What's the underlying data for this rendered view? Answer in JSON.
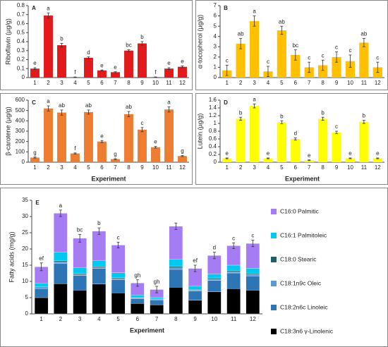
{
  "chart_data": [
    {
      "type": "bar",
      "panel": "A",
      "ylabel": "Riboflavin (µg/g)",
      "color": "#e31a1c",
      "categories": [
        "1",
        "2",
        "3",
        "4",
        "5",
        "6",
        "7",
        "8",
        "9",
        "10",
        "11",
        "12"
      ],
      "values": [
        0.1,
        0.69,
        0.36,
        0.005,
        0.22,
        0.08,
        0.06,
        0.3,
        0.38,
        0.005,
        0.1,
        0.12
      ],
      "errors": [
        0.01,
        0.03,
        0.02,
        0.002,
        0.01,
        0.005,
        0.005,
        0.01,
        0.02,
        0.002,
        0.01,
        0.01
      ],
      "annotations": [
        "e",
        "a",
        "b",
        "f",
        "d",
        "e",
        "e",
        "bc",
        "b",
        "f",
        "e",
        "e"
      ],
      "ylim": [
        0,
        0.8
      ],
      "yticks": [
        0,
        0.1,
        0.2,
        0.3,
        0.4,
        0.5,
        0.6,
        0.7,
        0.8
      ]
    },
    {
      "type": "bar",
      "panel": "B",
      "ylabel": "α-tocopherol (µg/g)",
      "color": "#ffc000",
      "categories": [
        "1",
        "2",
        "3",
        "4",
        "5",
        "6",
        "7",
        "8",
        "9",
        "10",
        "11",
        "12"
      ],
      "values": [
        0.7,
        3.3,
        5.5,
        0.6,
        4.6,
        2.2,
        1.0,
        1.2,
        2.0,
        1.6,
        3.4,
        1.0
      ],
      "errors": [
        0.5,
        0.5,
        0.5,
        0.5,
        0.4,
        0.5,
        0.5,
        0.5,
        0.5,
        0.6,
        0.4,
        0.5
      ],
      "annotations": [
        "c",
        "ab",
        "a",
        "c",
        "ab",
        "bc",
        "c",
        "c",
        "c",
        "c",
        "ab",
        "c"
      ],
      "ylim": [
        0,
        7
      ],
      "yticks": [
        0,
        1,
        2,
        3,
        4,
        5,
        6,
        7
      ]
    },
    {
      "type": "bar",
      "panel": "C",
      "ylabel": "β-carotene (µg/g)",
      "xlabel": "Experiment",
      "color": "#ed7d31",
      "categories": [
        "1",
        "2",
        "3",
        "4",
        "5",
        "6",
        "7",
        "8",
        "9",
        "10",
        "11",
        "12"
      ],
      "values": [
        45,
        520,
        480,
        85,
        485,
        200,
        30,
        465,
        315,
        145,
        510,
        60
      ],
      "errors": [
        5,
        25,
        25,
        5,
        20,
        10,
        4,
        25,
        20,
        8,
        25,
        5
      ],
      "annotations": [
        "g",
        "a",
        "ab",
        "f",
        "ab",
        "e",
        "g",
        "ab",
        "c",
        "e",
        "a",
        "g"
      ],
      "ylim": [
        0,
        600
      ],
      "yticks": [
        0,
        100,
        200,
        300,
        400,
        500,
        600
      ]
    },
    {
      "type": "bar",
      "panel": "D",
      "ylabel": "Lutein (µg/g)",
      "xlabel": "Experiment",
      "color": "#ffff00",
      "categories": [
        "1",
        "2",
        "3",
        "4",
        "5",
        "6",
        "7",
        "8",
        "9",
        "10",
        "11",
        "12"
      ],
      "values": [
        0.1,
        1.12,
        1.45,
        0.1,
        1.03,
        0.6,
        0.05,
        1.12,
        0.77,
        0.1,
        1.04,
        0.1
      ],
      "errors": [
        0.01,
        0.04,
        0.05,
        0.01,
        0.04,
        0.03,
        0.01,
        0.04,
        0.03,
        0.01,
        0.04,
        0.01
      ],
      "annotations": [
        "e",
        "b",
        "a",
        "e",
        "b",
        "d",
        "e",
        "b",
        "c",
        "e",
        "b",
        "e"
      ],
      "ylim": [
        0,
        1.6
      ],
      "yticks": [
        0,
        0.2,
        0.4,
        0.6,
        0.8,
        1,
        1.2,
        1.4,
        1.6
      ]
    },
    {
      "type": "stacked_bar",
      "panel": "E",
      "ylabel": "Fatty acids (mg/g)",
      "xlabel": "Experiment",
      "categories": [
        "1",
        "2",
        "3",
        "4",
        "5",
        "6",
        "7",
        "8",
        "9",
        "10",
        "11",
        "12"
      ],
      "series": [
        {
          "name": "C18:3n6 γ-Linolenic",
          "color": "#000000",
          "values": [
            5,
            9.3,
            7.3,
            9.2,
            6.5,
            3.2,
            2.8,
            8.2,
            4.2,
            6.8,
            7.8,
            7.3
          ]
        },
        {
          "name": "C18:2n6c Linoleic",
          "color": "#2e75b6",
          "values": [
            2.8,
            6.2,
            4.5,
            4.8,
            4,
            1.5,
            1.5,
            5.5,
            2.8,
            3.5,
            4.8,
            4.4
          ]
        },
        {
          "name": "C18:1n9c Oleic",
          "color": "#5b9bd5",
          "values": [
            0.3,
            0.5,
            0.4,
            0.4,
            0.4,
            0.2,
            0.2,
            0.5,
            0.3,
            0.3,
            0.4,
            0.4
          ]
        },
        {
          "name": "C18:0 Stearic",
          "color": "#1f5f6b",
          "values": [
            0.2,
            0.4,
            0.3,
            0.3,
            0.3,
            0.1,
            0.1,
            0.4,
            0.2,
            0.3,
            0.3,
            0.3
          ]
        },
        {
          "name": "C16:1 Palmitoleic",
          "color": "#00c8f0",
          "values": [
            1.2,
            2.6,
            1.8,
            1.8,
            1.5,
            0.8,
            0.5,
            2.2,
            1,
            1.4,
            1.7,
            1.7
          ]
        },
        {
          "name": "C16:0 Palmitic",
          "color": "#a67cf5",
          "values": [
            5.0,
            12.0,
            9.0,
            9.0,
            8.5,
            3.7,
            2.4,
            10.2,
            5.5,
            5.7,
            6.0,
            7.6
          ]
        }
      ],
      "errors": [
        1.2,
        1.0,
        1.2,
        1.0,
        0.9,
        1.0,
        1.0,
        1.0,
        1.0,
        1.0,
        0.9,
        1.0
      ],
      "annotations": [
        "ef",
        "a",
        "bc",
        "b",
        "c",
        "gh",
        "gh",
        null,
        "ef",
        "d",
        "c",
        "c"
      ],
      "ylim": [
        0,
        35
      ],
      "yticks": [
        0,
        5,
        10,
        15,
        20,
        25,
        30,
        35
      ]
    }
  ]
}
